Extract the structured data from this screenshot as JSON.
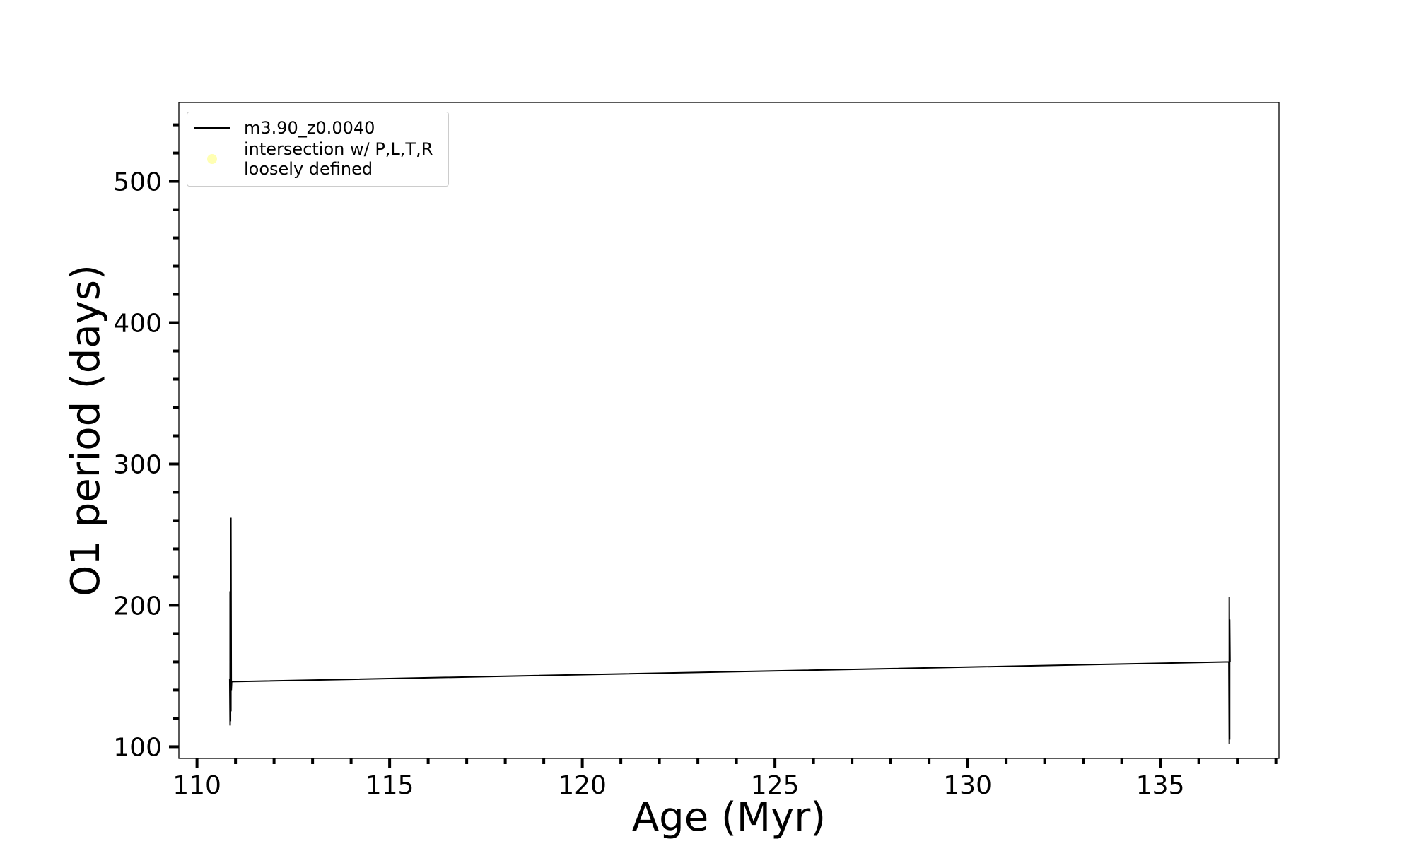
{
  "chart_data": {
    "type": "line",
    "xlabel": "Age (Myr)",
    "ylabel": "O1 period (days)",
    "series": [
      {
        "name": "m3.90_z0.0040",
        "color": "#000000",
        "x": [
          110.85,
          110.86,
          110.86,
          110.87,
          110.87,
          110.88,
          110.88,
          110.89,
          110.9,
          136.78,
          136.79,
          136.79,
          136.8,
          136.8,
          136.81
        ],
        "values": [
          148,
          115,
          210,
          118,
          235,
          125,
          262,
          140,
          146,
          160,
          102,
          206,
          105,
          190,
          160
        ]
      },
      {
        "name": "intersection w/ P,L,T,R\nloosely defined",
        "color": "#ffffb3",
        "x": [],
        "values": []
      }
    ],
    "xlim": [
      109.53,
      138.08
    ],
    "ylim": [
      91.7,
      555.8
    ],
    "xticks": [
      110,
      115,
      120,
      125,
      130,
      135
    ],
    "yticks": [
      100,
      200,
      300,
      400,
      500
    ],
    "xminorticks": [
      111,
      112,
      113,
      114,
      116,
      117,
      118,
      119,
      121,
      122,
      123,
      124,
      126,
      127,
      128,
      129,
      131,
      132,
      133,
      134,
      136,
      137,
      138
    ],
    "yminorticks": [
      120,
      140,
      160,
      180,
      220,
      240,
      260,
      280,
      320,
      340,
      360,
      380,
      420,
      440,
      460,
      480,
      520,
      540
    ],
    "grid": false,
    "legend": "upper left"
  }
}
